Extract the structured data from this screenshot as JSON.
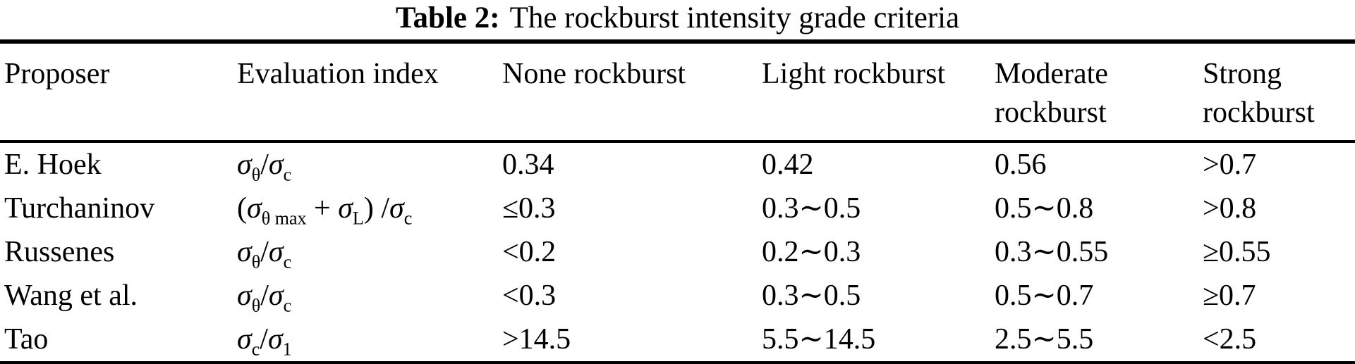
{
  "caption": {
    "number": "Table 2:",
    "text": "The rockburst intensity grade criteria"
  },
  "table": {
    "headers": [
      "Proposer",
      "Evaluation index",
      "None rockburst",
      "Light rockburst",
      "Moderate rockburst",
      "Strong rockburst"
    ],
    "rows": [
      {
        "proposer": "E. Hoek",
        "formula": [
          {
            "t": "σ",
            "it": true
          },
          {
            "t": "θ",
            "sub": true
          },
          {
            "t": "/"
          },
          {
            "t": "σ",
            "it": true
          },
          {
            "t": "c",
            "sub": true
          }
        ],
        "values": [
          "0.34",
          "0.42",
          "0.56",
          ">0.7"
        ]
      },
      {
        "proposer": "Turchaninov",
        "formula": [
          {
            "t": "("
          },
          {
            "t": "σ",
            "it": true
          },
          {
            "t": "θ max",
            "sub": true
          },
          {
            "t": " + "
          },
          {
            "t": "σ",
            "it": true
          },
          {
            "t": "L",
            "sub": true
          },
          {
            "t": ") /"
          },
          {
            "t": "σ",
            "it": true
          },
          {
            "t": "c",
            "sub": true
          }
        ],
        "values": [
          "≤0.3",
          "0.3∼0.5",
          "0.5∼0.8",
          ">0.8"
        ]
      },
      {
        "proposer": "Russenes",
        "formula": [
          {
            "t": "σ",
            "it": true
          },
          {
            "t": "θ",
            "sub": true
          },
          {
            "t": "/"
          },
          {
            "t": "σ",
            "it": true
          },
          {
            "t": "c",
            "sub": true
          }
        ],
        "values": [
          "<0.2",
          "0.2∼0.3",
          "0.3∼0.55",
          "≥0.55"
        ]
      },
      {
        "proposer": "Wang et al.",
        "formula": [
          {
            "t": "σ",
            "it": true
          },
          {
            "t": "θ",
            "sub": true
          },
          {
            "t": "/"
          },
          {
            "t": "σ",
            "it": true
          },
          {
            "t": "c",
            "sub": true
          }
        ],
        "values": [
          "<0.3",
          "0.3∼0.5",
          "0.5∼0.7",
          "≥0.7"
        ]
      },
      {
        "proposer": "Tao",
        "formula": [
          {
            "t": "σ",
            "it": true
          },
          {
            "t": "c",
            "sub": true
          },
          {
            "t": "/"
          },
          {
            "t": "σ",
            "it": true
          },
          {
            "t": "1",
            "sub": true
          }
        ],
        "values": [
          ">14.5",
          "5.5∼14.5",
          "2.5∼5.5",
          "<2.5"
        ]
      }
    ]
  }
}
